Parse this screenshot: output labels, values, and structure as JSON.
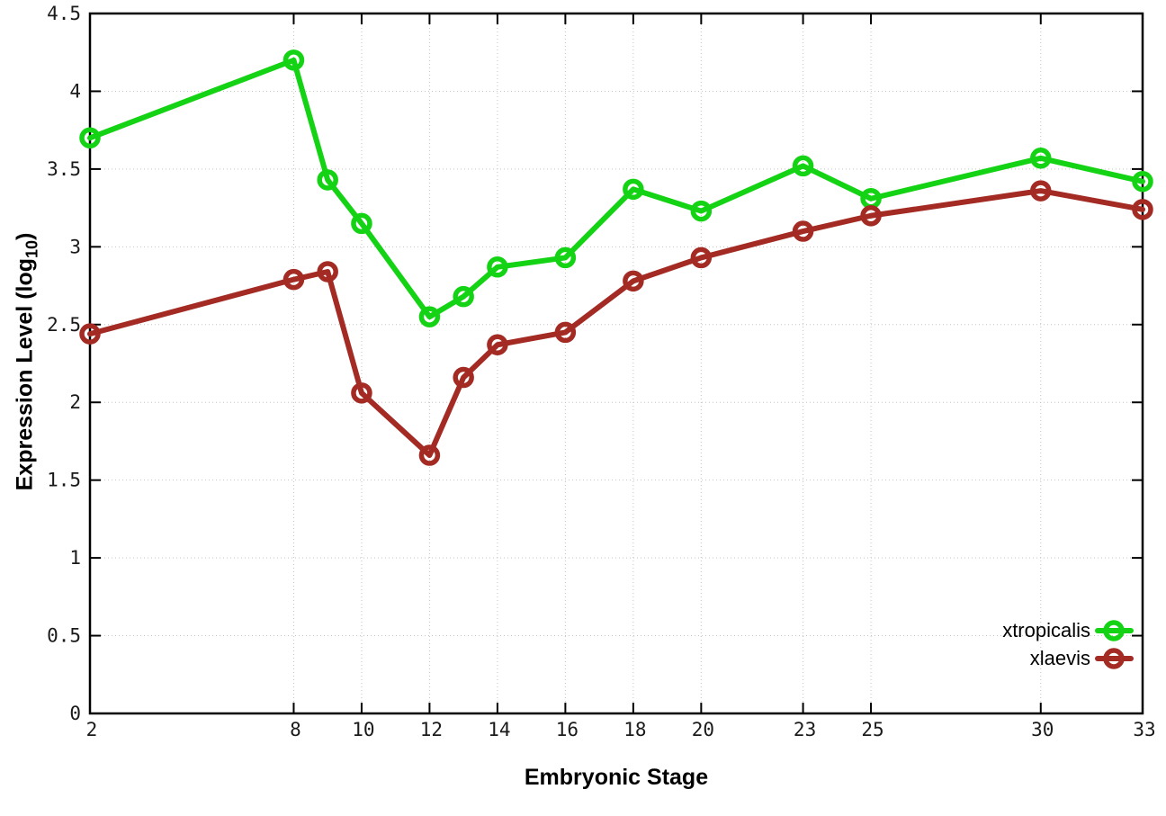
{
  "chart_data": {
    "type": "line",
    "title": "",
    "xlabel": "Embryonic Stage",
    "ylabel": "Expression Level (log10)",
    "ylabel_parts": {
      "pre": "Expression Level (log",
      "sub": "10",
      "post": ")"
    },
    "x": [
      2,
      8,
      9,
      10,
      12,
      13,
      14,
      16,
      18,
      20,
      23,
      25,
      30,
      33
    ],
    "xticks": [
      2,
      8,
      10,
      12,
      14,
      16,
      18,
      20,
      23,
      25,
      30,
      33
    ],
    "yticks": [
      0,
      0.5,
      1,
      1.5,
      2,
      2.5,
      3,
      3.5,
      4,
      4.5
    ],
    "xlim": [
      2,
      33
    ],
    "ylim": [
      0,
      4.5
    ],
    "grid": true,
    "legend_position": "bottom-right-inside",
    "series": [
      {
        "name": "xtropicalis",
        "color": "#14d314",
        "values": [
          3.7,
          4.2,
          3.43,
          3.15,
          2.55,
          2.68,
          2.87,
          2.93,
          3.37,
          3.23,
          3.52,
          3.31,
          3.57,
          3.42
        ]
      },
      {
        "name": "xlaevis",
        "color": "#a32b24",
        "values": [
          2.44,
          2.79,
          2.84,
          2.06,
          1.66,
          2.16,
          2.37,
          2.45,
          2.78,
          2.93,
          3.1,
          3.2,
          3.36,
          3.24
        ]
      }
    ],
    "style": {
      "border_color": "#000000",
      "grid_color": "#c4c4c4",
      "tick_label_color": "#1a1a1a"
    }
  }
}
